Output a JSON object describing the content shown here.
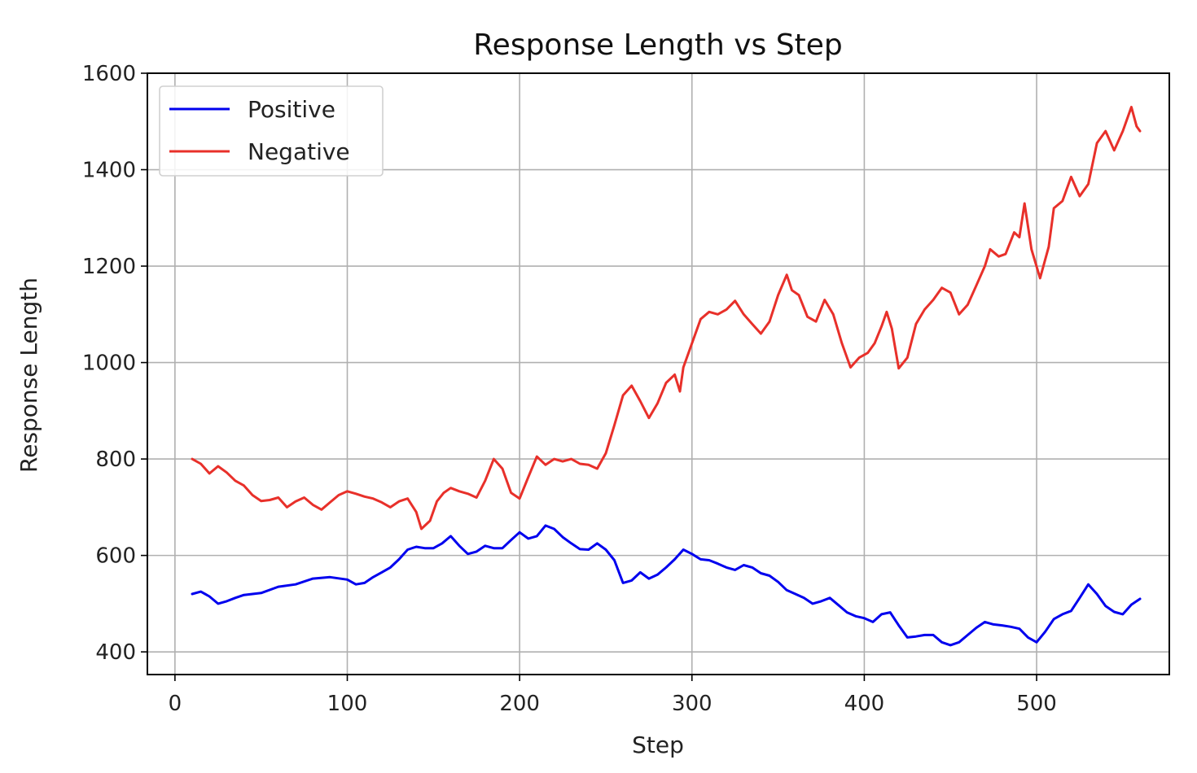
{
  "chart_data": {
    "type": "line",
    "title": "Response Length vs Step",
    "xlabel": "Step",
    "ylabel": "Response Length",
    "xlim": [
      -16,
      577
    ],
    "ylim": [
      353,
      1600
    ],
    "xticks": [
      0,
      100,
      200,
      300,
      400,
      500
    ],
    "yticks": [
      400,
      600,
      800,
      1000,
      1200,
      1400,
      1600
    ],
    "grid": true,
    "legend_position": "top-left",
    "series": [
      {
        "name": "Positive",
        "color": "#0000ee",
        "points": [
          [
            10,
            520
          ],
          [
            15,
            525
          ],
          [
            20,
            515
          ],
          [
            25,
            500
          ],
          [
            30,
            505
          ],
          [
            35,
            512
          ],
          [
            40,
            518
          ],
          [
            50,
            522
          ],
          [
            60,
            535
          ],
          [
            70,
            540
          ],
          [
            80,
            552
          ],
          [
            90,
            555
          ],
          [
            100,
            550
          ],
          [
            105,
            540
          ],
          [
            110,
            543
          ],
          [
            115,
            555
          ],
          [
            120,
            565
          ],
          [
            125,
            575
          ],
          [
            130,
            592
          ],
          [
            135,
            612
          ],
          [
            140,
            618
          ],
          [
            145,
            615
          ],
          [
            150,
            615
          ],
          [
            155,
            625
          ],
          [
            160,
            640
          ],
          [
            165,
            620
          ],
          [
            170,
            603
          ],
          [
            175,
            608
          ],
          [
            180,
            620
          ],
          [
            185,
            615
          ],
          [
            190,
            615
          ],
          [
            195,
            632
          ],
          [
            200,
            648
          ],
          [
            205,
            635
          ],
          [
            210,
            640
          ],
          [
            215,
            662
          ],
          [
            220,
            655
          ],
          [
            225,
            638
          ],
          [
            230,
            625
          ],
          [
            235,
            613
          ],
          [
            240,
            612
          ],
          [
            245,
            625
          ],
          [
            250,
            612
          ],
          [
            255,
            590
          ],
          [
            260,
            543
          ],
          [
            265,
            548
          ],
          [
            270,
            565
          ],
          [
            275,
            552
          ],
          [
            280,
            560
          ],
          [
            285,
            575
          ],
          [
            290,
            592
          ],
          [
            295,
            612
          ],
          [
            300,
            603
          ],
          [
            305,
            592
          ],
          [
            310,
            590
          ],
          [
            315,
            583
          ],
          [
            320,
            575
          ],
          [
            325,
            570
          ],
          [
            330,
            580
          ],
          [
            335,
            575
          ],
          [
            340,
            563
          ],
          [
            345,
            558
          ],
          [
            350,
            545
          ],
          [
            355,
            528
          ],
          [
            360,
            520
          ],
          [
            365,
            512
          ],
          [
            370,
            500
          ],
          [
            375,
            505
          ],
          [
            380,
            512
          ],
          [
            385,
            497
          ],
          [
            390,
            482
          ],
          [
            395,
            474
          ],
          [
            400,
            470
          ],
          [
            405,
            462
          ],
          [
            410,
            478
          ],
          [
            415,
            482
          ],
          [
            420,
            455
          ],
          [
            425,
            430
          ],
          [
            430,
            432
          ],
          [
            435,
            435
          ],
          [
            440,
            435
          ],
          [
            445,
            420
          ],
          [
            450,
            414
          ],
          [
            455,
            420
          ],
          [
            460,
            435
          ],
          [
            465,
            450
          ],
          [
            470,
            462
          ],
          [
            475,
            457
          ],
          [
            480,
            455
          ],
          [
            485,
            452
          ],
          [
            490,
            448
          ],
          [
            495,
            430
          ],
          [
            500,
            420
          ],
          [
            505,
            442
          ],
          [
            510,
            468
          ],
          [
            515,
            478
          ],
          [
            520,
            485
          ],
          [
            525,
            512
          ],
          [
            530,
            540
          ],
          [
            535,
            520
          ],
          [
            540,
            495
          ],
          [
            545,
            483
          ],
          [
            550,
            478
          ],
          [
            555,
            498
          ],
          [
            560,
            510
          ]
        ]
      },
      {
        "name": "Negative",
        "color": "#e8302a",
        "points": [
          [
            10,
            800
          ],
          [
            15,
            790
          ],
          [
            20,
            770
          ],
          [
            25,
            785
          ],
          [
            30,
            772
          ],
          [
            35,
            755
          ],
          [
            40,
            745
          ],
          [
            45,
            725
          ],
          [
            50,
            713
          ],
          [
            55,
            715
          ],
          [
            60,
            720
          ],
          [
            65,
            700
          ],
          [
            70,
            712
          ],
          [
            75,
            720
          ],
          [
            80,
            705
          ],
          [
            85,
            695
          ],
          [
            90,
            710
          ],
          [
            95,
            725
          ],
          [
            100,
            733
          ],
          [
            105,
            728
          ],
          [
            110,
            722
          ],
          [
            115,
            718
          ],
          [
            120,
            710
          ],
          [
            125,
            700
          ],
          [
            130,
            712
          ],
          [
            135,
            718
          ],
          [
            140,
            690
          ],
          [
            143,
            655
          ],
          [
            148,
            672
          ],
          [
            152,
            712
          ],
          [
            156,
            730
          ],
          [
            160,
            740
          ],
          [
            165,
            733
          ],
          [
            170,
            728
          ],
          [
            175,
            720
          ],
          [
            180,
            755
          ],
          [
            185,
            800
          ],
          [
            190,
            780
          ],
          [
            195,
            730
          ],
          [
            200,
            718
          ],
          [
            205,
            762
          ],
          [
            210,
            805
          ],
          [
            215,
            788
          ],
          [
            220,
            800
          ],
          [
            225,
            795
          ],
          [
            230,
            800
          ],
          [
            235,
            790
          ],
          [
            240,
            788
          ],
          [
            245,
            780
          ],
          [
            250,
            812
          ],
          [
            255,
            870
          ],
          [
            260,
            932
          ],
          [
            265,
            952
          ],
          [
            270,
            920
          ],
          [
            275,
            885
          ],
          [
            280,
            915
          ],
          [
            285,
            958
          ],
          [
            290,
            975
          ],
          [
            293,
            940
          ],
          [
            295,
            990
          ],
          [
            300,
            1040
          ],
          [
            305,
            1090
          ],
          [
            310,
            1105
          ],
          [
            315,
            1100
          ],
          [
            320,
            1110
          ],
          [
            325,
            1128
          ],
          [
            330,
            1100
          ],
          [
            335,
            1080
          ],
          [
            340,
            1060
          ],
          [
            345,
            1085
          ],
          [
            350,
            1140
          ],
          [
            355,
            1182
          ],
          [
            358,
            1150
          ],
          [
            362,
            1140
          ],
          [
            367,
            1095
          ],
          [
            372,
            1085
          ],
          [
            377,
            1130
          ],
          [
            382,
            1100
          ],
          [
            387,
            1040
          ],
          [
            392,
            990
          ],
          [
            397,
            1010
          ],
          [
            402,
            1020
          ],
          [
            406,
            1040
          ],
          [
            410,
            1075
          ],
          [
            413,
            1105
          ],
          [
            416,
            1070
          ],
          [
            420,
            988
          ],
          [
            425,
            1010
          ],
          [
            430,
            1080
          ],
          [
            435,
            1110
          ],
          [
            440,
            1130
          ],
          [
            445,
            1155
          ],
          [
            450,
            1145
          ],
          [
            455,
            1100
          ],
          [
            460,
            1120
          ],
          [
            465,
            1160
          ],
          [
            470,
            1200
          ],
          [
            473,
            1235
          ],
          [
            478,
            1220
          ],
          [
            482,
            1225
          ],
          [
            487,
            1270
          ],
          [
            490,
            1260
          ],
          [
            493,
            1330
          ],
          [
            497,
            1235
          ],
          [
            502,
            1175
          ],
          [
            507,
            1240
          ],
          [
            510,
            1320
          ],
          [
            515,
            1335
          ],
          [
            520,
            1385
          ],
          [
            525,
            1345
          ],
          [
            530,
            1370
          ],
          [
            535,
            1455
          ],
          [
            540,
            1480
          ],
          [
            545,
            1440
          ],
          [
            550,
            1480
          ],
          [
            555,
            1530
          ],
          [
            558,
            1490
          ],
          [
            560,
            1480
          ]
        ]
      }
    ]
  }
}
